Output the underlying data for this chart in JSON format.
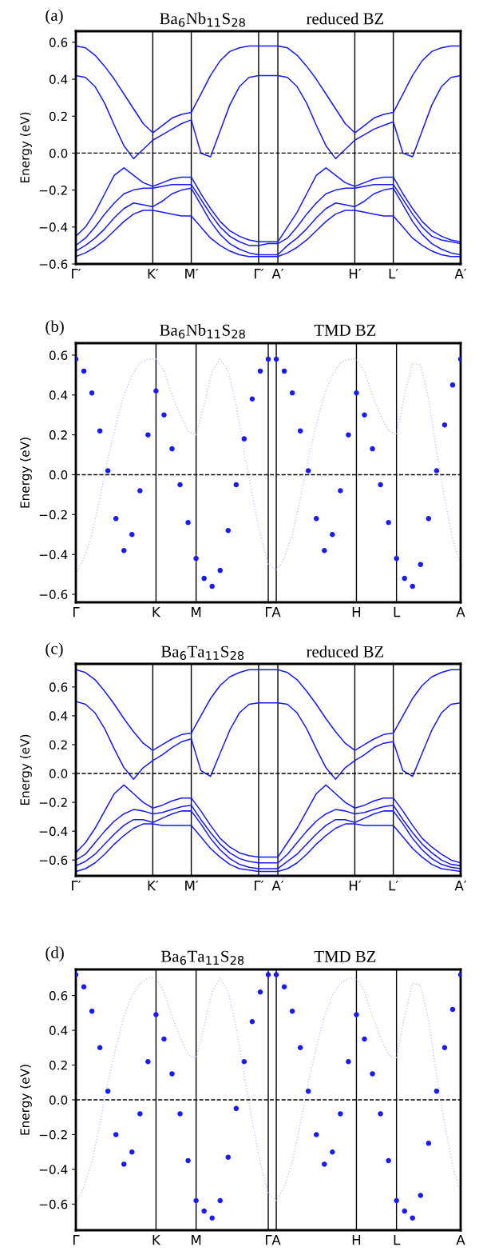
{
  "chart_data": [
    {
      "type": "line",
      "title": "Ba$_{6}$Nb$_{11}$S$_{28}$",
      "subtitle": "reduced BZ",
      "annotations": [
        "(a)"
      ],
      "ylabel": "Energy (eV)",
      "ylim": [
        -0.6,
        0.66
      ],
      "yticks": [
        {
          "value": -0.6,
          "label": "−0.6"
        },
        {
          "value": -0.4,
          "label": "−0.4"
        },
        {
          "value": -0.2,
          "label": "−0.2"
        },
        {
          "value": 0,
          "label": "0.0"
        },
        {
          "value": 0.2,
          "label": "0.2"
        },
        {
          "value": 0.4,
          "label": "0.4"
        },
        {
          "value": 0.6,
          "label": "0.6"
        }
      ],
      "categories": [
        "Γ′",
        null,
        null,
        null,
        null,
        null,
        null,
        null,
        "K′",
        null,
        null,
        null,
        "M′",
        null,
        null,
        null,
        null,
        null,
        null,
        "Γ′",
        null,
        "A′",
        null,
        null,
        null,
        null,
        null,
        null,
        null,
        "H′",
        null,
        null,
        null,
        "L′",
        null,
        null,
        null,
        null,
        null,
        null,
        "A′"
      ],
      "grid": "x",
      "ref_lines": [
        {
          "axis": "y",
          "value": 0,
          "label": null,
          "line_style": "dashed",
          "color": "#000000"
        }
      ],
      "series": [
        {
          "color": "#1a1aff",
          "values": [
            0.58,
            0.57,
            0.53,
            0.47,
            0.4,
            0.32,
            0.24,
            0.16,
            0.11,
            0.15,
            0.19,
            0.21,
            0.22,
            0.32,
            0.42,
            0.5,
            0.55,
            0.57,
            0.58,
            0.58,
            0.58,
            0.58,
            0.57,
            0.53,
            0.47,
            0.4,
            0.32,
            0.24,
            0.16,
            0.11,
            0.15,
            0.19,
            0.21,
            0.22,
            0.32,
            0.42,
            0.5,
            0.55,
            0.57,
            0.58,
            0.58
          ]
        },
        {
          "color": "#1a1aff",
          "values": [
            0.42,
            0.41,
            0.36,
            0.27,
            0.15,
            0.04,
            -0.03,
            0.02,
            0.07,
            0.1,
            0.13,
            0.16,
            0.18,
            0.0,
            -0.02,
            0.12,
            0.26,
            0.36,
            0.41,
            0.42,
            0.42,
            0.42,
            0.41,
            0.36,
            0.27,
            0.15,
            0.04,
            -0.03,
            0.02,
            0.07,
            0.1,
            0.13,
            0.15,
            0.17,
            0.0,
            -0.02,
            0.12,
            0.26,
            0.36,
            0.41,
            0.42
          ]
        },
        {
          "color": "#1a1aff",
          "values": [
            -0.45,
            -0.4,
            -0.32,
            -0.22,
            -0.12,
            -0.08,
            -0.12,
            -0.16,
            -0.18,
            -0.16,
            -0.14,
            -0.13,
            -0.13,
            -0.22,
            -0.3,
            -0.37,
            -0.42,
            -0.45,
            -0.47,
            -0.48,
            -0.48,
            -0.48,
            -0.4,
            -0.32,
            -0.22,
            -0.12,
            -0.08,
            -0.12,
            -0.16,
            -0.18,
            -0.16,
            -0.14,
            -0.13,
            -0.13,
            -0.22,
            -0.3,
            -0.37,
            -0.42,
            -0.45,
            -0.47,
            -0.48
          ]
        },
        {
          "color": "#1a1aff",
          "values": [
            -0.5,
            -0.46,
            -0.4,
            -0.33,
            -0.27,
            -0.22,
            -0.2,
            -0.19,
            -0.19,
            -0.18,
            -0.17,
            -0.17,
            -0.17,
            -0.25,
            -0.33,
            -0.4,
            -0.45,
            -0.48,
            -0.5,
            -0.5,
            -0.49,
            -0.49,
            -0.46,
            -0.4,
            -0.33,
            -0.27,
            -0.22,
            -0.2,
            -0.19,
            -0.19,
            -0.18,
            -0.17,
            -0.17,
            -0.17,
            -0.25,
            -0.33,
            -0.4,
            -0.45,
            -0.47,
            -0.48,
            -0.49
          ]
        },
        {
          "color": "#1a1aff",
          "values": [
            -0.53,
            -0.5,
            -0.46,
            -0.41,
            -0.35,
            -0.3,
            -0.27,
            -0.28,
            -0.29,
            -0.26,
            -0.22,
            -0.2,
            -0.19,
            -0.28,
            -0.37,
            -0.44,
            -0.49,
            -0.52,
            -0.54,
            -0.55,
            -0.55,
            -0.55,
            -0.5,
            -0.46,
            -0.41,
            -0.35,
            -0.3,
            -0.27,
            -0.28,
            -0.29,
            -0.26,
            -0.22,
            -0.2,
            -0.19,
            -0.28,
            -0.37,
            -0.44,
            -0.49,
            -0.52,
            -0.54,
            -0.55
          ]
        },
        {
          "color": "#1a1aff",
          "values": [
            -0.56,
            -0.54,
            -0.51,
            -0.47,
            -0.42,
            -0.37,
            -0.33,
            -0.31,
            -0.31,
            -0.32,
            -0.33,
            -0.34,
            -0.34,
            -0.4,
            -0.46,
            -0.5,
            -0.53,
            -0.55,
            -0.56,
            -0.56,
            -0.56,
            -0.56,
            -0.54,
            -0.51,
            -0.47,
            -0.42,
            -0.37,
            -0.33,
            -0.31,
            -0.31,
            -0.32,
            -0.33,
            -0.34,
            -0.34,
            -0.4,
            -0.46,
            -0.5,
            -0.53,
            -0.55,
            -0.56,
            -0.56
          ]
        }
      ]
    },
    {
      "type": "scatter",
      "title": "Ba$_{6}$Nb$_{11}$S$_{28}$",
      "subtitle": "TMD BZ",
      "annotations": [
        "(b)"
      ],
      "ylabel": "Energy (eV)",
      "ylim": [
        -0.64,
        0.66
      ],
      "yticks": [
        {
          "value": -0.6,
          "label": "−0.6"
        },
        {
          "value": -0.4,
          "label": "−0.4"
        },
        {
          "value": -0.2,
          "label": "−0.2"
        },
        {
          "value": 0,
          "label": "0.0"
        },
        {
          "value": 0.2,
          "label": "0.2"
        },
        {
          "value": 0.4,
          "label": "0.4"
        },
        {
          "value": 0.6,
          "label": "0.6"
        }
      ],
      "categories": [
        "Γ",
        null,
        null,
        null,
        null,
        null,
        null,
        null,
        null,
        null,
        "K",
        null,
        null,
        null,
        null,
        "M",
        null,
        null,
        null,
        null,
        null,
        null,
        null,
        null,
        "Γ",
        "A",
        null,
        null,
        null,
        null,
        null,
        null,
        null,
        null,
        null,
        "H",
        null,
        null,
        null,
        null,
        "L",
        null,
        null,
        null,
        null,
        null,
        null,
        null,
        "A"
      ],
      "grid": "x",
      "ref_lines": [
        {
          "axis": "y",
          "value": 0,
          "label": null,
          "line_style": "dashed",
          "color": "#000000"
        }
      ],
      "series": [
        {
          "type": "line",
          "line_style": "dotted",
          "color": "#c8c8f5",
          "values": [
            -0.5,
            -0.42,
            -0.3,
            -0.12,
            0.08,
            0.25,
            0.4,
            0.5,
            0.56,
            0.58,
            0.58,
            0.52,
            0.4,
            0.3,
            0.22,
            0.2,
            0.35,
            0.52,
            0.58,
            0.52,
            0.35,
            0.12,
            -0.1,
            -0.3,
            -0.45,
            -0.48,
            -0.42,
            -0.3,
            -0.12,
            0.08,
            0.25,
            0.4,
            0.5,
            0.56,
            0.58,
            0.58,
            0.52,
            0.4,
            0.3,
            0.22,
            0.2,
            0.4,
            0.56,
            0.55,
            0.38,
            0.12,
            -0.12,
            -0.32,
            -0.45
          ]
        },
        {
          "type": "scatter",
          "color": "#1a1aff",
          "values": [
            0.58,
            0.52,
            0.41,
            0.22,
            0.02,
            -0.22,
            -0.38,
            -0.3,
            -0.08,
            0.2,
            0.42,
            0.3,
            0.13,
            -0.05,
            -0.24,
            -0.42,
            -0.52,
            -0.56,
            -0.48,
            -0.28,
            -0.05,
            0.18,
            0.38,
            0.52,
            0.58,
            0.58,
            0.52,
            0.41,
            0.22,
            0.02,
            -0.22,
            -0.38,
            -0.3,
            -0.08,
            0.2,
            0.41,
            0.3,
            0.13,
            -0.05,
            -0.24,
            -0.42,
            -0.52,
            -0.56,
            -0.45,
            -0.22,
            0.02,
            0.25,
            0.45,
            0.58
          ]
        }
      ]
    },
    {
      "type": "line",
      "title": "Ba$_{6}$Ta$_{11}$S$_{28}$",
      "subtitle": "reduced BZ",
      "annotations": [
        "(c)"
      ],
      "ylabel": "Energy (eV)",
      "ylim": [
        -0.71,
        0.76
      ],
      "yticks": [
        {
          "value": -0.6,
          "label": "−0.6"
        },
        {
          "value": -0.4,
          "label": "−0.4"
        },
        {
          "value": -0.2,
          "label": "−0.2"
        },
        {
          "value": 0,
          "label": "0.0"
        },
        {
          "value": 0.2,
          "label": "0.2"
        },
        {
          "value": 0.4,
          "label": "0.4"
        },
        {
          "value": 0.6,
          "label": "0.6"
        }
      ],
      "categories": [
        "Γ′",
        null,
        null,
        null,
        null,
        null,
        null,
        null,
        "K′",
        null,
        null,
        null,
        "M′",
        null,
        null,
        null,
        null,
        null,
        null,
        "Γ′",
        null,
        "A′",
        null,
        null,
        null,
        null,
        null,
        null,
        null,
        "H′",
        null,
        null,
        null,
        "L′",
        null,
        null,
        null,
        null,
        null,
        null,
        "A′"
      ],
      "grid": "x",
      "ref_lines": [
        {
          "axis": "y",
          "value": 0,
          "label": null,
          "line_style": "dashed",
          "color": "#000000"
        }
      ],
      "series": [
        {
          "color": "#1a1aff",
          "values": [
            0.72,
            0.7,
            0.65,
            0.57,
            0.48,
            0.38,
            0.29,
            0.21,
            0.16,
            0.2,
            0.24,
            0.27,
            0.28,
            0.4,
            0.52,
            0.61,
            0.67,
            0.7,
            0.72,
            0.72,
            0.72,
            0.72,
            0.7,
            0.65,
            0.57,
            0.48,
            0.38,
            0.29,
            0.21,
            0.16,
            0.2,
            0.24,
            0.27,
            0.28,
            0.4,
            0.52,
            0.61,
            0.67,
            0.7,
            0.72,
            0.72
          ]
        },
        {
          "color": "#1a1aff",
          "values": [
            0.5,
            0.48,
            0.42,
            0.31,
            0.17,
            0.04,
            -0.04,
            0.04,
            0.09,
            0.13,
            0.18,
            0.22,
            0.24,
            0.02,
            -0.02,
            0.14,
            0.3,
            0.42,
            0.48,
            0.49,
            0.49,
            0.49,
            0.48,
            0.42,
            0.31,
            0.17,
            0.04,
            -0.04,
            0.04,
            0.09,
            0.13,
            0.18,
            0.21,
            0.22,
            0.02,
            -0.02,
            0.14,
            0.3,
            0.42,
            0.48,
            0.49
          ]
        },
        {
          "color": "#1a1aff",
          "values": [
            -0.55,
            -0.48,
            -0.38,
            -0.26,
            -0.14,
            -0.08,
            -0.14,
            -0.2,
            -0.24,
            -0.22,
            -0.19,
            -0.17,
            -0.17,
            -0.26,
            -0.36,
            -0.45,
            -0.51,
            -0.55,
            -0.57,
            -0.58,
            -0.58,
            -0.58,
            -0.48,
            -0.38,
            -0.26,
            -0.14,
            -0.08,
            -0.14,
            -0.2,
            -0.24,
            -0.22,
            -0.19,
            -0.17,
            -0.17,
            -0.26,
            -0.36,
            -0.45,
            -0.51,
            -0.56,
            -0.6,
            -0.62
          ]
        },
        {
          "color": "#1a1aff",
          "values": [
            -0.6,
            -0.56,
            -0.48,
            -0.4,
            -0.33,
            -0.28,
            -0.25,
            -0.26,
            -0.28,
            -0.27,
            -0.25,
            -0.23,
            -0.22,
            -0.32,
            -0.41,
            -0.49,
            -0.55,
            -0.59,
            -0.61,
            -0.62,
            -0.62,
            -0.62,
            -0.56,
            -0.48,
            -0.4,
            -0.33,
            -0.28,
            -0.25,
            -0.26,
            -0.28,
            -0.27,
            -0.25,
            -0.23,
            -0.22,
            -0.32,
            -0.41,
            -0.49,
            -0.55,
            -0.6,
            -0.63,
            -0.64
          ]
        },
        {
          "color": "#1a1aff",
          "values": [
            -0.64,
            -0.61,
            -0.56,
            -0.49,
            -0.42,
            -0.36,
            -0.32,
            -0.32,
            -0.34,
            -0.31,
            -0.28,
            -0.26,
            -0.26,
            -0.35,
            -0.45,
            -0.53,
            -0.59,
            -0.63,
            -0.65,
            -0.66,
            -0.66,
            -0.66,
            -0.61,
            -0.56,
            -0.49,
            -0.42,
            -0.36,
            -0.32,
            -0.32,
            -0.34,
            -0.31,
            -0.28,
            -0.26,
            -0.26,
            -0.35,
            -0.45,
            -0.53,
            -0.59,
            -0.63,
            -0.65,
            -0.66
          ]
        },
        {
          "color": "#1a1aff",
          "values": [
            -0.68,
            -0.66,
            -0.62,
            -0.56,
            -0.49,
            -0.43,
            -0.38,
            -0.35,
            -0.35,
            -0.36,
            -0.36,
            -0.36,
            -0.36,
            -0.44,
            -0.52,
            -0.58,
            -0.63,
            -0.66,
            -0.67,
            -0.68,
            -0.68,
            -0.68,
            -0.66,
            -0.62,
            -0.56,
            -0.49,
            -0.43,
            -0.38,
            -0.35,
            -0.35,
            -0.36,
            -0.36,
            -0.36,
            -0.36,
            -0.44,
            -0.52,
            -0.58,
            -0.63,
            -0.66,
            -0.67,
            -0.68
          ]
        }
      ]
    },
    {
      "type": "scatter",
      "title": "Ba$_{6}$Ta$_{11}$S$_{28}$",
      "subtitle": "TMD BZ",
      "annotations": [
        "(d)"
      ],
      "ylabel": "Energy (eV)",
      "ylim": [
        -0.75,
        0.75
      ],
      "yticks": [
        {
          "value": -0.6,
          "label": "−0.6"
        },
        {
          "value": -0.4,
          "label": "−0.4"
        },
        {
          "value": -0.2,
          "label": "−0.2"
        },
        {
          "value": 0,
          "label": "0.0"
        },
        {
          "value": 0.2,
          "label": "0.2"
        },
        {
          "value": 0.4,
          "label": "0.4"
        },
        {
          "value": 0.6,
          "label": "0.6"
        }
      ],
      "categories": [
        "Γ",
        null,
        null,
        null,
        null,
        null,
        null,
        null,
        null,
        null,
        "K",
        null,
        null,
        null,
        null,
        "M",
        null,
        null,
        null,
        null,
        null,
        null,
        null,
        null,
        "Γ",
        "A",
        null,
        null,
        null,
        null,
        null,
        null,
        null,
        null,
        null,
        "H",
        null,
        null,
        null,
        null,
        "L",
        null,
        null,
        null,
        null,
        null,
        null,
        null,
        "A"
      ],
      "grid": "x",
      "ref_lines": [
        {
          "axis": "y",
          "value": 0,
          "label": null,
          "line_style": "dashed",
          "color": "#000000"
        }
      ],
      "series": [
        {
          "type": "line",
          "line_style": "dotted",
          "color": "#c8c8f5",
          "values": [
            -0.6,
            -0.5,
            -0.36,
            -0.14,
            0.1,
            0.3,
            0.48,
            0.6,
            0.67,
            0.7,
            0.7,
            0.62,
            0.48,
            0.36,
            0.26,
            0.24,
            0.42,
            0.62,
            0.7,
            0.62,
            0.42,
            0.14,
            -0.12,
            -0.36,
            -0.54,
            -0.58,
            -0.5,
            -0.36,
            -0.14,
            0.1,
            0.3,
            0.48,
            0.6,
            0.67,
            0.7,
            0.7,
            0.62,
            0.48,
            0.36,
            0.26,
            0.24,
            0.48,
            0.67,
            0.66,
            0.46,
            0.14,
            -0.14,
            -0.38,
            -0.54
          ]
        },
        {
          "type": "scatter",
          "color": "#1a1aff",
          "values": [
            0.72,
            0.65,
            0.51,
            0.3,
            0.05,
            -0.2,
            -0.37,
            -0.3,
            -0.08,
            0.22,
            0.49,
            0.35,
            0.15,
            -0.08,
            -0.35,
            -0.58,
            -0.64,
            -0.68,
            -0.58,
            -0.33,
            -0.05,
            0.22,
            0.45,
            0.62,
            0.72,
            0.72,
            0.65,
            0.51,
            0.3,
            0.05,
            -0.2,
            -0.37,
            -0.3,
            -0.08,
            0.22,
            0.49,
            0.35,
            0.15,
            -0.08,
            -0.35,
            -0.58,
            -0.64,
            -0.68,
            -0.55,
            -0.25,
            0.05,
            0.3,
            0.52,
            0.72
          ]
        }
      ]
    }
  ]
}
